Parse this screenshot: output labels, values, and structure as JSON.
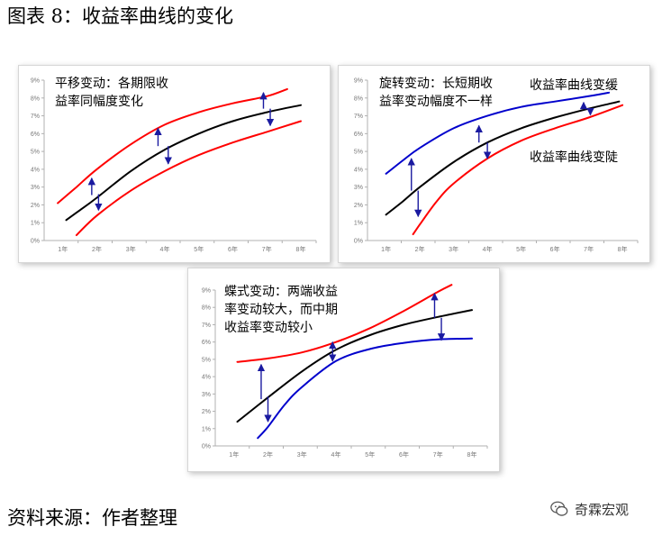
{
  "figure_title": "图表 8：收益率曲线的变化",
  "source_note": "资料来源：作者整理",
  "watermark": {
    "text": "奇霖宏观",
    "icon": "wechat-icon"
  },
  "colors": {
    "black": "#000000",
    "red": "#ff0000",
    "blue": "#0000cc",
    "arrow": "#1a1aa0",
    "axis": "#b0b0b0"
  },
  "chart_data": [
    {
      "type": "line",
      "panel": "parallel",
      "annotation_lines": [
        "平移变动：各期限收",
        "益率同幅度变化"
      ],
      "side_labels": [],
      "x": [
        "1年",
        "2年",
        "3年",
        "4年",
        "5年",
        "6年",
        "7年",
        "8年"
      ],
      "y_ticks": [
        "0%",
        "1%",
        "2%",
        "3%",
        "4%",
        "5%",
        "6%",
        "7%",
        "8%",
        "9%"
      ],
      "ylim": [
        0,
        9
      ],
      "grid": false,
      "series": [
        {
          "color": "red",
          "points": [
            [
              0.85,
              2.1
            ],
            [
              1.4,
              3.0
            ],
            [
              2,
              4.0
            ],
            [
              3,
              5.4
            ],
            [
              4,
              6.5
            ],
            [
              5,
              7.2
            ],
            [
              6,
              7.7
            ],
            [
              7,
              8.1
            ],
            [
              7.6,
              8.5
            ]
          ]
        },
        {
          "color": "black",
          "points": [
            [
              1.1,
              1.15
            ],
            [
              1.5,
              1.7
            ],
            [
              2,
              2.4
            ],
            [
              3,
              3.9
            ],
            [
              4,
              5.1
            ],
            [
              5,
              6.0
            ],
            [
              6,
              6.7
            ],
            [
              7,
              7.2
            ],
            [
              8,
              7.6
            ]
          ]
        },
        {
          "color": "red",
          "points": [
            [
              1.4,
              0.3
            ],
            [
              2,
              1.4
            ],
            [
              3,
              2.8
            ],
            [
              4,
              3.9
            ],
            [
              5,
              4.8
            ],
            [
              6,
              5.5
            ],
            [
              7,
              6.1
            ],
            [
              8,
              6.7
            ]
          ]
        }
      ],
      "shift_arrows": [
        {
          "x": 1.85,
          "from": 2.55,
          "to": 3.5
        },
        {
          "x": 2.05,
          "from": 2.6,
          "to": 1.7
        },
        {
          "x": 3.8,
          "from": 5.3,
          "to": 6.3
        },
        {
          "x": 4.1,
          "from": 5.3,
          "to": 4.3
        },
        {
          "x": 6.9,
          "from": 7.4,
          "to": 8.3
        },
        {
          "x": 7.1,
          "from": 7.4,
          "to": 6.45
        }
      ]
    },
    {
      "type": "line",
      "panel": "twist",
      "annotation_lines": [
        "旋转变动：长短期收",
        "益率变动幅度不一样"
      ],
      "side_labels": [
        "收益率曲线变缓",
        "收益率曲线变陡"
      ],
      "x": [
        "1年",
        "2年",
        "3年",
        "4年",
        "5年",
        "6年",
        "7年",
        "8年"
      ],
      "y_ticks": [
        "0%",
        "1%",
        "2%",
        "3%",
        "4%",
        "5%",
        "6%",
        "7%",
        "8%",
        "9%"
      ],
      "ylim": [
        0,
        9
      ],
      "grid": false,
      "series": [
        {
          "color": "blue",
          "points": [
            [
              1,
              3.75
            ],
            [
              1.5,
              4.5
            ],
            [
              2,
              5.2
            ],
            [
              3,
              6.3
            ],
            [
              4,
              7.0
            ],
            [
              5,
              7.5
            ],
            [
              6,
              7.8
            ],
            [
              7,
              8.1
            ],
            [
              7.6,
              8.3
            ]
          ]
        },
        {
          "color": "black",
          "points": [
            [
              1,
              1.45
            ],
            [
              1.5,
              2.2
            ],
            [
              2,
              3.0
            ],
            [
              3,
              4.4
            ],
            [
              4,
              5.5
            ],
            [
              5,
              6.3
            ],
            [
              6,
              6.9
            ],
            [
              7,
              7.4
            ],
            [
              7.9,
              7.8
            ]
          ]
        },
        {
          "color": "red",
          "points": [
            [
              1.8,
              0.35
            ],
            [
              2,
              0.9
            ],
            [
              2.5,
              2.2
            ],
            [
              3,
              3.2
            ],
            [
              4,
              4.6
            ],
            [
              5,
              5.6
            ],
            [
              6,
              6.3
            ],
            [
              7,
              6.9
            ],
            [
              8,
              7.6
            ]
          ]
        }
      ],
      "shift_arrows": [
        {
          "x": 1.75,
          "from": 2.8,
          "to": 4.6
        },
        {
          "x": 1.95,
          "from": 2.8,
          "to": 1.35
        },
        {
          "x": 3.75,
          "from": 5.5,
          "to": 6.45
        },
        {
          "x": 4.0,
          "from": 5.5,
          "to": 4.6
        },
        {
          "x": 6.85,
          "from": 7.4,
          "to": 7.75
        },
        {
          "x": 7.05,
          "from": 7.4,
          "to": 7.05
        }
      ]
    },
    {
      "type": "line",
      "panel": "butterfly",
      "annotation_lines": [
        "蝶式变动：两端收益",
        "率变动较大，而中期",
        "收益率变动较小"
      ],
      "side_labels": [],
      "x": [
        "1年",
        "2年",
        "3年",
        "4年",
        "5年",
        "6年",
        "7年",
        "8年"
      ],
      "y_ticks": [
        "0%",
        "1%",
        "2%",
        "3%",
        "4%",
        "5%",
        "6%",
        "7%",
        "8%",
        "9%"
      ],
      "ylim": [
        0,
        9
      ],
      "grid": false,
      "series": [
        {
          "color": "red",
          "points": [
            [
              1.1,
              4.85
            ],
            [
              2,
              5.05
            ],
            [
              3,
              5.4
            ],
            [
              4,
              6.0
            ],
            [
              5,
              6.8
            ],
            [
              6,
              7.8
            ],
            [
              7,
              8.9
            ],
            [
              7.4,
              9.3
            ]
          ]
        },
        {
          "color": "black",
          "points": [
            [
              1.1,
              1.4
            ],
            [
              2,
              2.8
            ],
            [
              3,
              4.3
            ],
            [
              4,
              5.55
            ],
            [
              5,
              6.4
            ],
            [
              6,
              7.0
            ],
            [
              7,
              7.45
            ],
            [
              8,
              7.85
            ]
          ]
        },
        {
          "color": "blue",
          "points": [
            [
              1.7,
              0.45
            ],
            [
              2,
              1.1
            ],
            [
              2.5,
              2.4
            ],
            [
              3,
              3.4
            ],
            [
              4,
              4.9
            ],
            [
              5,
              5.6
            ],
            [
              6,
              5.95
            ],
            [
              7,
              6.15
            ],
            [
              8,
              6.2
            ]
          ]
        }
      ],
      "shift_arrows": [
        {
          "x": 1.8,
          "from": 2.7,
          "to": 4.7
        },
        {
          "x": 2.0,
          "from": 2.85,
          "to": 1.4
        },
        {
          "x": 3.9,
          "from": 5.5,
          "to": 6.0
        },
        {
          "x": 3.9,
          "from": 5.5,
          "to": 4.9
        },
        {
          "x": 6.9,
          "from": 7.4,
          "to": 8.8
        },
        {
          "x": 7.1,
          "from": 7.4,
          "to": 6.1
        }
      ]
    }
  ]
}
